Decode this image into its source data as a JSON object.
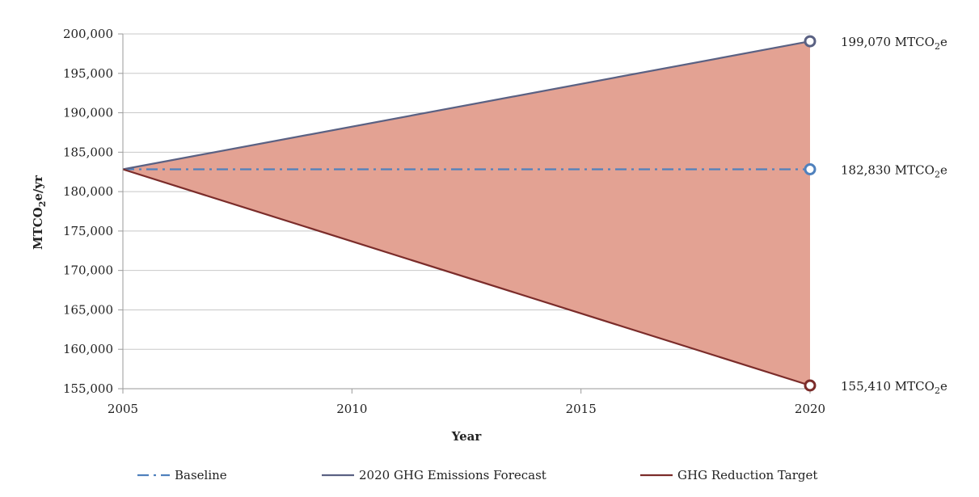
{
  "chart_data": {
    "type": "line",
    "xlabel": "Year",
    "ylabel": "MTCO2e/yr",
    "ylabel_parts": {
      "pre": "MTCO",
      "sub": "2",
      "post": "e/yr"
    },
    "xlim": [
      2005,
      2020
    ],
    "ylim": [
      155000,
      200000
    ],
    "x_ticks": [
      2005,
      2010,
      2015,
      2020
    ],
    "x_tick_labels": [
      "2005",
      "2010",
      "2015",
      "2020"
    ],
    "y_ticks": [
      155000,
      160000,
      165000,
      170000,
      175000,
      180000,
      185000,
      190000,
      195000,
      200000
    ],
    "y_tick_labels": [
      "155,000",
      "160,000",
      "165,000",
      "170,000",
      "175,000",
      "180,000",
      "185,000",
      "190,000",
      "195,000",
      "200,000"
    ],
    "grid": true,
    "legend_position": "bottom",
    "fill_between": {
      "upper": "2020 GHG Emissions Forecast",
      "lower": "GHG Reduction Target",
      "color": "#e3a293"
    },
    "series": [
      {
        "name": "Baseline",
        "x": [
          2005,
          2020
        ],
        "values": [
          182830,
          182830
        ],
        "color": "#4f81bd",
        "style": "dash-dot",
        "end_label": {
          "pre": "182,830 MTCO",
          "sub": "2",
          "post": "e"
        }
      },
      {
        "name": "2020 GHG Emissions Forecast",
        "x": [
          2005,
          2020
        ],
        "values": [
          182830,
          199070
        ],
        "color": "#5a6183",
        "style": "solid",
        "end_label": {
          "pre": "199,070 MTCO",
          "sub": "2",
          "post": "e"
        }
      },
      {
        "name": "GHG Reduction Target",
        "x": [
          2005,
          2020
        ],
        "values": [
          182830,
          155410
        ],
        "color": "#7b2c2a",
        "style": "solid",
        "end_label": {
          "pre": "155,410 MTCO",
          "sub": "2",
          "post": "e"
        }
      }
    ]
  }
}
